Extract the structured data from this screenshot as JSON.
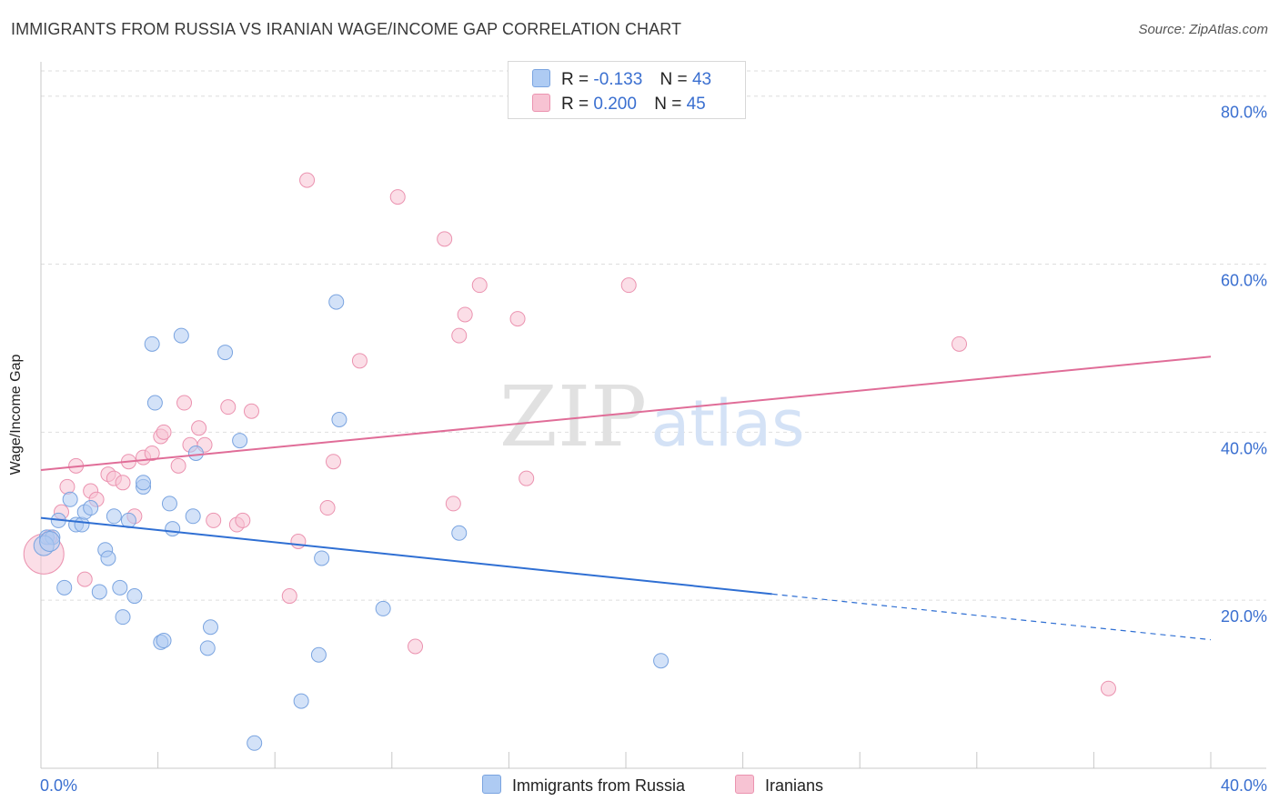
{
  "header": {
    "title": "IMMIGRANTS FROM RUSSIA VS IRANIAN WAGE/INCOME GAP CORRELATION CHART",
    "source": "Source: ZipAtlas.com"
  },
  "watermark": {
    "zip": "ZIP",
    "atlas": "atlas"
  },
  "legend": {
    "russia": {
      "r_label": "R =",
      "r_value": "-0.133",
      "n_label": "N =",
      "n_value": "43"
    },
    "iran": {
      "r_label": "R =",
      "r_value": "0.200",
      "n_label": "N =",
      "n_value": "45"
    }
  },
  "colors": {
    "russia_fill": "#aecbf3",
    "russia_stroke": "#7aa4e0",
    "russia_line": "#2f6fd3",
    "iran_fill": "#f7c3d3",
    "iran_stroke": "#eb93b0",
    "iran_line": "#e06d98",
    "axis_text": "#3a6fd0",
    "grid": "#dedede"
  },
  "chart_data": {
    "type": "scatter",
    "title": "IMMIGRANTS FROM RUSSIA VS IRANIAN WAGE/INCOME GAP CORRELATION CHART",
    "xlabel": "",
    "ylabel": "Wage/Income Gap",
    "xlim": [
      0,
      40
    ],
    "ylim": [
      0,
      83
    ],
    "x_tick_labels": [
      "0.0%",
      "40.0%"
    ],
    "y_ticks": [
      20,
      40,
      60,
      80
    ],
    "y_tick_labels": [
      "20.0%",
      "40.0%",
      "60.0%",
      "80.0%"
    ],
    "grid": true,
    "legend_position": "bottom",
    "series": [
      {
        "name": "Immigrants from Russia",
        "color": "#aecbf3",
        "trend": {
          "x_start": 0,
          "y_start": 29.8,
          "x_solid_end": 25,
          "x_end": 40,
          "y_end": 15.3
        },
        "points": [
          [
            0.2,
            27.5
          ],
          [
            0.4,
            27.5
          ],
          [
            0.6,
            29.5
          ],
          [
            0.8,
            21.5
          ],
          [
            1.0,
            32.0
          ],
          [
            1.2,
            29.0
          ],
          [
            1.4,
            29.0
          ],
          [
            1.5,
            30.5
          ],
          [
            1.7,
            31.0
          ],
          [
            2.0,
            21.0
          ],
          [
            2.2,
            26.0
          ],
          [
            2.3,
            25.0
          ],
          [
            2.5,
            30.0
          ],
          [
            2.7,
            21.5
          ],
          [
            2.8,
            18.0
          ],
          [
            3.0,
            29.5
          ],
          [
            3.2,
            20.5
          ],
          [
            3.5,
            33.5
          ],
          [
            3.5,
            34.0
          ],
          [
            3.8,
            50.5
          ],
          [
            3.9,
            43.5
          ],
          [
            4.1,
            15.0
          ],
          [
            4.2,
            15.2
          ],
          [
            4.5,
            28.5
          ],
          [
            4.4,
            31.5
          ],
          [
            4.8,
            51.5
          ],
          [
            5.2,
            30.0
          ],
          [
            5.3,
            37.5
          ],
          [
            5.7,
            14.3
          ],
          [
            5.8,
            16.8
          ],
          [
            6.3,
            49.5
          ],
          [
            6.8,
            39.0
          ],
          [
            7.3,
            3.0
          ],
          [
            8.9,
            8.0
          ],
          [
            9.5,
            13.5
          ],
          [
            9.6,
            25.0
          ],
          [
            10.1,
            55.5
          ],
          [
            10.2,
            41.5
          ],
          [
            11.7,
            19.0
          ],
          [
            14.3,
            28.0
          ],
          [
            21.2,
            12.8
          ],
          [
            0.1,
            26.5
          ],
          [
            0.3,
            27.0
          ]
        ]
      },
      {
        "name": "Iranians",
        "color": "#f7c3d3",
        "trend": {
          "x_start": 0,
          "y_start": 35.5,
          "x_end": 40,
          "y_end": 49.0
        },
        "points": [
          [
            0.1,
            25.5
          ],
          [
            0.3,
            27.5
          ],
          [
            0.7,
            30.5
          ],
          [
            0.9,
            33.5
          ],
          [
            1.2,
            36.0
          ],
          [
            1.5,
            22.5
          ],
          [
            1.7,
            33.0
          ],
          [
            1.9,
            32.0
          ],
          [
            2.3,
            35.0
          ],
          [
            2.5,
            34.5
          ],
          [
            2.8,
            34.0
          ],
          [
            3.0,
            36.5
          ],
          [
            3.2,
            30.0
          ],
          [
            3.5,
            37.0
          ],
          [
            3.8,
            37.5
          ],
          [
            4.1,
            39.5
          ],
          [
            4.2,
            40.0
          ],
          [
            4.7,
            36.0
          ],
          [
            4.9,
            43.5
          ],
          [
            5.1,
            38.5
          ],
          [
            5.4,
            40.5
          ],
          [
            5.6,
            38.5
          ],
          [
            5.9,
            29.5
          ],
          [
            6.4,
            43.0
          ],
          [
            6.7,
            29.0
          ],
          [
            6.9,
            29.5
          ],
          [
            7.2,
            42.5
          ],
          [
            8.5,
            20.5
          ],
          [
            8.8,
            27.0
          ],
          [
            9.1,
            70.0
          ],
          [
            9.8,
            31.0
          ],
          [
            10.0,
            36.5
          ],
          [
            10.9,
            48.5
          ],
          [
            12.2,
            68.0
          ],
          [
            12.8,
            14.5
          ],
          [
            13.8,
            63.0
          ],
          [
            14.1,
            31.5
          ],
          [
            14.3,
            51.5
          ],
          [
            14.5,
            54.0
          ],
          [
            15.0,
            57.5
          ],
          [
            16.3,
            53.5
          ],
          [
            16.6,
            34.5
          ],
          [
            20.1,
            57.5
          ],
          [
            31.4,
            50.5
          ],
          [
            36.5,
            9.5
          ]
        ]
      }
    ]
  },
  "bottom_legend": {
    "russia_label": "Immigrants from Russia",
    "iran_label": "Iranians"
  }
}
